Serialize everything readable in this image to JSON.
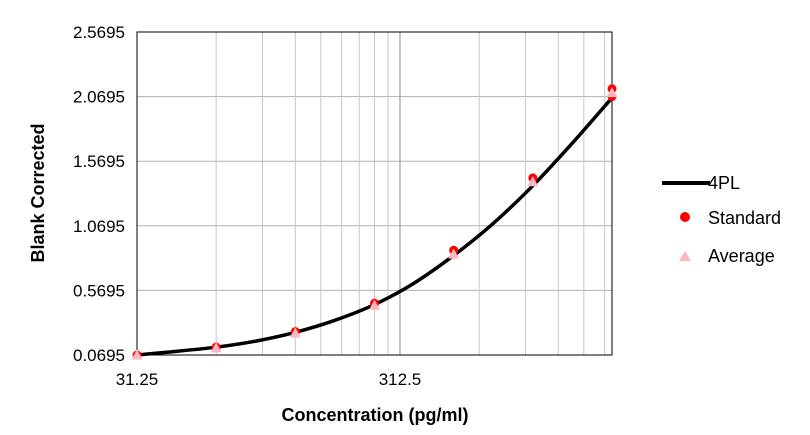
{
  "chart_data": {
    "type": "scatter",
    "xlabel": "Concentration (pg/ml)",
    "ylabel": "Blank Corrected",
    "x_scale": "log",
    "xlim": [
      31.25,
      2000
    ],
    "ylim": [
      0.0695,
      2.5695
    ],
    "y_ticks": [
      "0.0695",
      "0.5695",
      "1.0695",
      "1.5695",
      "2.0695",
      "2.5695"
    ],
    "x_ticks": [
      "31.25",
      "312.5"
    ],
    "grid": true,
    "legend_position": "right",
    "colors": {
      "fit": "#000000",
      "standard": "#ff0000",
      "average": "#ffb6c1"
    },
    "series": [
      {
        "name": "4PL",
        "kind": "line",
        "x": [
          31.25,
          40,
          62.5,
          90,
          125,
          175,
          250,
          350,
          500,
          700,
          1000,
          1400,
          2000
        ],
        "y": [
          0.0695,
          0.09,
          0.13,
          0.18,
          0.245,
          0.335,
          0.46,
          0.62,
          0.84,
          1.08,
          1.38,
          1.7,
          2.06
        ]
      },
      {
        "name": "Standard",
        "kind": "points",
        "marker": "circle",
        "x": [
          31.25,
          62.5,
          125,
          250,
          500,
          1000,
          2000,
          2000
        ],
        "y": [
          0.0695,
          0.13,
          0.25,
          0.47,
          0.88,
          1.44,
          2.13,
          2.07
        ]
      },
      {
        "name": "Average",
        "kind": "points",
        "marker": "triangle",
        "x": [
          31.25,
          62.5,
          125,
          250,
          500,
          1000,
          2000
        ],
        "y": [
          0.0695,
          0.125,
          0.24,
          0.455,
          0.85,
          1.41,
          2.1
        ]
      }
    ]
  }
}
